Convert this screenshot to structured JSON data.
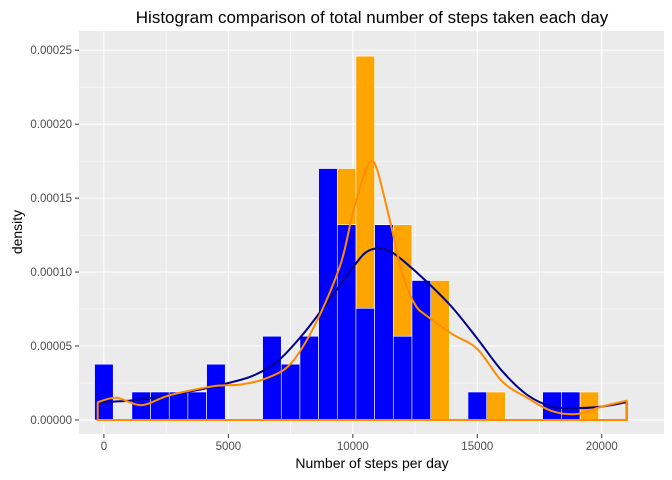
{
  "chart_data": {
    "type": "bar",
    "title": "Histogram comparison of total number of steps taken each day",
    "xlabel": "Number of steps per day",
    "ylabel": "density",
    "xlim": [
      -1000,
      22500
    ],
    "ylim": [
      -9.5e-06,
      0.000263
    ],
    "x_ticks": [
      0,
      5000,
      10000,
      15000,
      20000
    ],
    "x_tick_labels": [
      "0",
      "5000",
      "10000",
      "15000",
      "20000"
    ],
    "y_ticks": [
      0,
      5e-05,
      0.0001,
      0.00015,
      0.0002,
      0.00025
    ],
    "y_tick_labels": [
      "0.00000",
      "0.00005",
      "0.00010",
      "0.00015",
      "0.00020",
      "0.00025"
    ],
    "grid": true,
    "legend": "none",
    "bin_width": 750,
    "bin_centers": [
      0,
      750,
      1500,
      2250,
      3000,
      3750,
      4500,
      5250,
      6000,
      6750,
      7500,
      8250,
      9000,
      9750,
      10500,
      11250,
      12000,
      12750,
      13500,
      14250,
      15000,
      15750,
      16500,
      17250,
      18000,
      18750,
      19500,
      20250,
      21000
    ],
    "series": [
      {
        "kind": "histogram",
        "color": "#ffa500",
        "values": [
          3.77e-05,
          0,
          1.89e-05,
          1.89e-05,
          1.89e-05,
          1.89e-05,
          3.77e-05,
          0,
          0,
          5.66e-05,
          3.77e-05,
          5.66e-05,
          0.00017,
          0.00017,
          0.000246,
          7.55e-05,
          0.000132,
          5.66e-05,
          9.43e-05,
          0,
          0,
          1.89e-05,
          0,
          0,
          0,
          1.89e-05,
          1.89e-05,
          0,
          0
        ]
      },
      {
        "kind": "histogram",
        "color": "#0000ff",
        "values": [
          3.77e-05,
          0,
          1.89e-05,
          1.89e-05,
          1.89e-05,
          1.89e-05,
          3.77e-05,
          0,
          0,
          5.66e-05,
          3.77e-05,
          5.66e-05,
          0.00017,
          0.000132,
          7.55e-05,
          0.000132,
          5.66e-05,
          9.43e-05,
          0,
          0,
          1.89e-05,
          0,
          0,
          0,
          1.89e-05,
          1.89e-05,
          0,
          0,
          0
        ]
      },
      {
        "kind": "density",
        "color": "#00008b",
        "x": [
          -250,
          1000,
          2000,
          3000,
          4000,
          5000,
          6000,
          7000,
          8000,
          9000,
          10000,
          10500,
          11000,
          11500,
          12000,
          13000,
          14000,
          15000,
          16000,
          17000,
          18000,
          19000,
          20000,
          21000
        ],
        "values": [
          1.2e-05,
          1.3e-05,
          1.5e-05,
          1.8e-05,
          2.1e-05,
          2.5e-05,
          3e-05,
          4e-05,
          5.8e-05,
          8e-05,
          0.000103,
          0.000113,
          0.000116,
          0.000114,
          0.000108,
          9.3e-05,
          7.6e-05,
          5.5e-05,
          3.3e-05,
          1.7e-05,
          9e-06,
          8e-06,
          9e-06,
          1.2e-05
        ]
      },
      {
        "kind": "density",
        "color": "#ff8c00",
        "x": [
          -250,
          500,
          1500,
          2500,
          3500,
          4500,
          5500,
          6500,
          7500,
          8500,
          9500,
          10000,
          10500,
          10750,
          11000,
          11500,
          12000,
          12500,
          13000,
          14000,
          15000,
          16000,
          17000,
          18000,
          19000,
          20000,
          21000
        ],
        "values": [
          1.2e-05,
          1.5e-05,
          1e-05,
          1.6e-05,
          2e-05,
          2.3e-05,
          2.4e-05,
          2.8e-05,
          3.8e-05,
          6.5e-05,
          0.000105,
          0.00014,
          0.000168,
          0.000175,
          0.000168,
          0.000134,
          9.8e-05,
          7.8e-05,
          7e-05,
          5.8e-05,
          4.8e-05,
          2.6e-05,
          1.5e-05,
          6e-06,
          4e-06,
          9e-06,
          1.3e-05
        ]
      }
    ]
  }
}
